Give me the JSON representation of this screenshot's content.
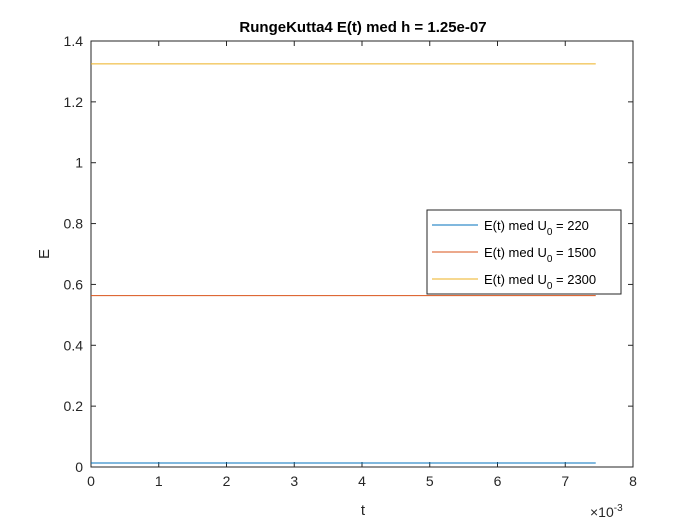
{
  "chart_data": {
    "type": "line",
    "title": "RungeKutta4 E(t) med h = 1.25e-07",
    "xlabel": "t",
    "ylabel": "E",
    "x_exponent_label": "×10",
    "x_exponent_power": "-3",
    "xlim": [
      0,
      0.008
    ],
    "ylim": [
      0,
      1.4
    ],
    "x_ticks": [
      0,
      0.001,
      0.002,
      0.003,
      0.004,
      0.005,
      0.006,
      0.007,
      0.008
    ],
    "x_tick_labels": [
      "0",
      "1",
      "2",
      "3",
      "4",
      "5",
      "6",
      "7",
      "8"
    ],
    "y_ticks": [
      0,
      0.2,
      0.4,
      0.6,
      0.8,
      1.0,
      1.2,
      1.4
    ],
    "y_tick_labels": [
      "0",
      "0.2",
      "0.4",
      "0.6",
      "0.8",
      "1",
      "1.2",
      "1.4"
    ],
    "grid": false,
    "legend_position": "right-middle",
    "series": [
      {
        "legend_prefix": "E(t) med U",
        "legend_subscript": "0",
        "legend_suffix": " = 220",
        "color": "#0072BD",
        "x": [
          0,
          0.00745
        ],
        "y": [
          0.013,
          0.013
        ]
      },
      {
        "legend_prefix": "E(t) med U",
        "legend_subscript": "0",
        "legend_suffix": " = 1500",
        "color": "#D95319",
        "x": [
          0,
          0.00745
        ],
        "y": [
          0.563,
          0.563
        ]
      },
      {
        "legend_prefix": "E(t) med U",
        "legend_subscript": "0",
        "legend_suffix": " = 2300",
        "color": "#EDB120",
        "x": [
          0,
          0.00745
        ],
        "y": [
          1.325,
          1.325
        ]
      }
    ]
  }
}
